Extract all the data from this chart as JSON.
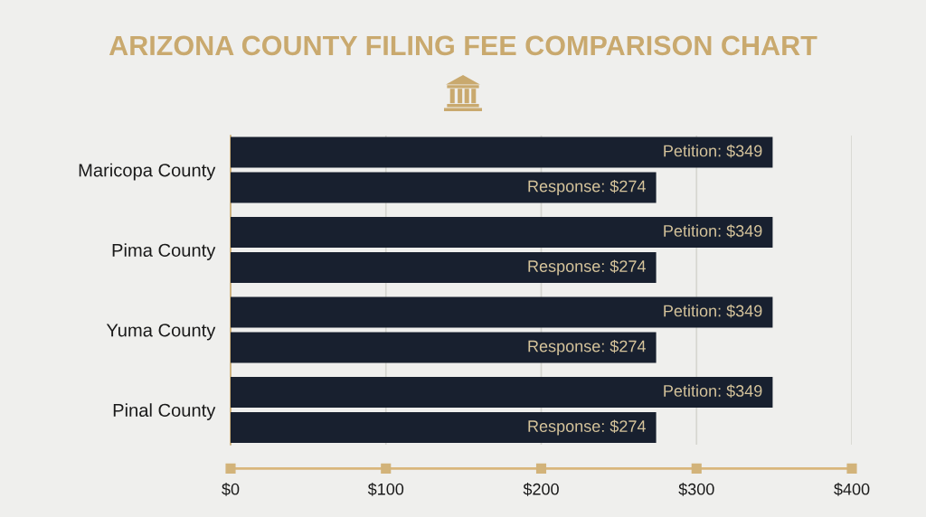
{
  "chart_data": {
    "type": "bar",
    "orientation": "horizontal",
    "title": "ARIZONA COUNTY FILING FEE COMPARISON CHART",
    "categories": [
      "Maricopa County",
      "Pima County",
      "Yuma County",
      "Pinal County"
    ],
    "series": [
      {
        "color": "#18202f",
        "values": [
          349,
          349,
          349,
          349
        ],
        "value_labels": [
          "Petition: $349",
          "Petition: $349",
          "Petition: $349",
          "Petition: $349"
        ]
      },
      {
        "color": "#18202f",
        "values": [
          274,
          274,
          274,
          274
        ],
        "value_labels": [
          "Response: $274",
          "Response: $274",
          "Response: $274",
          "Response: $274"
        ]
      }
    ],
    "xlim": [
      0,
      400
    ],
    "xticks": [
      {
        "value": 0,
        "label": "$0"
      },
      {
        "value": 100,
        "label": "$100"
      },
      {
        "value": 200,
        "label": "$200"
      },
      {
        "value": 300,
        "label": "$300"
      },
      {
        "value": 400,
        "label": "$400"
      }
    ],
    "grid": "x"
  }
}
